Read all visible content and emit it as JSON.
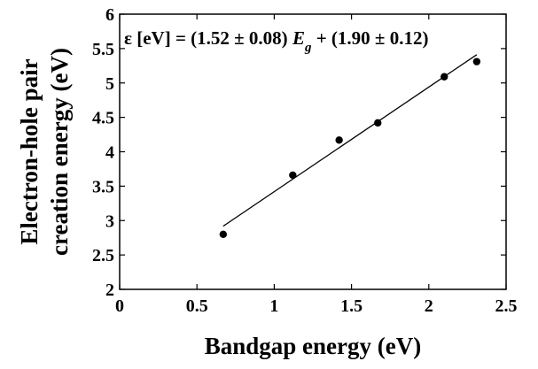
{
  "chart_data": {
    "type": "scatter",
    "title": "",
    "xlabel": "Bandgap energy (eV)",
    "ylabel_lines": [
      "Electron-hole pair",
      "creation energy (eV)"
    ],
    "xlim": [
      0,
      2.5
    ],
    "ylim": [
      2,
      6
    ],
    "x_ticks": [
      "0",
      "0.5",
      "1",
      "1.5",
      "2",
      "2.5"
    ],
    "y_ticks": [
      "2",
      "2.5",
      "3",
      "3.5",
      "4",
      "4.5",
      "5",
      "5.5",
      "6"
    ],
    "grid": false,
    "annotation": {
      "prefix": "ε [eV] = (1.52 ± 0.08) ",
      "variable": "E",
      "subscript": "g",
      "suffix": " + (1.90 ± 0.12)"
    },
    "series": [
      {
        "points": [
          {
            "x": 0.67,
            "y": 2.8
          },
          {
            "x": 1.12,
            "y": 3.66
          },
          {
            "x": 1.42,
            "y": 4.17
          },
          {
            "x": 1.67,
            "y": 4.42
          },
          {
            "x": 2.1,
            "y": 5.09
          },
          {
            "x": 2.31,
            "y": 5.31
          }
        ]
      }
    ],
    "fit_line": {
      "slope": 1.52,
      "intercept": 1.9,
      "x_range": [
        0.67,
        2.31
      ]
    },
    "colors": {
      "axis": "#000000",
      "marker": "#000000",
      "line": "#000000"
    }
  }
}
